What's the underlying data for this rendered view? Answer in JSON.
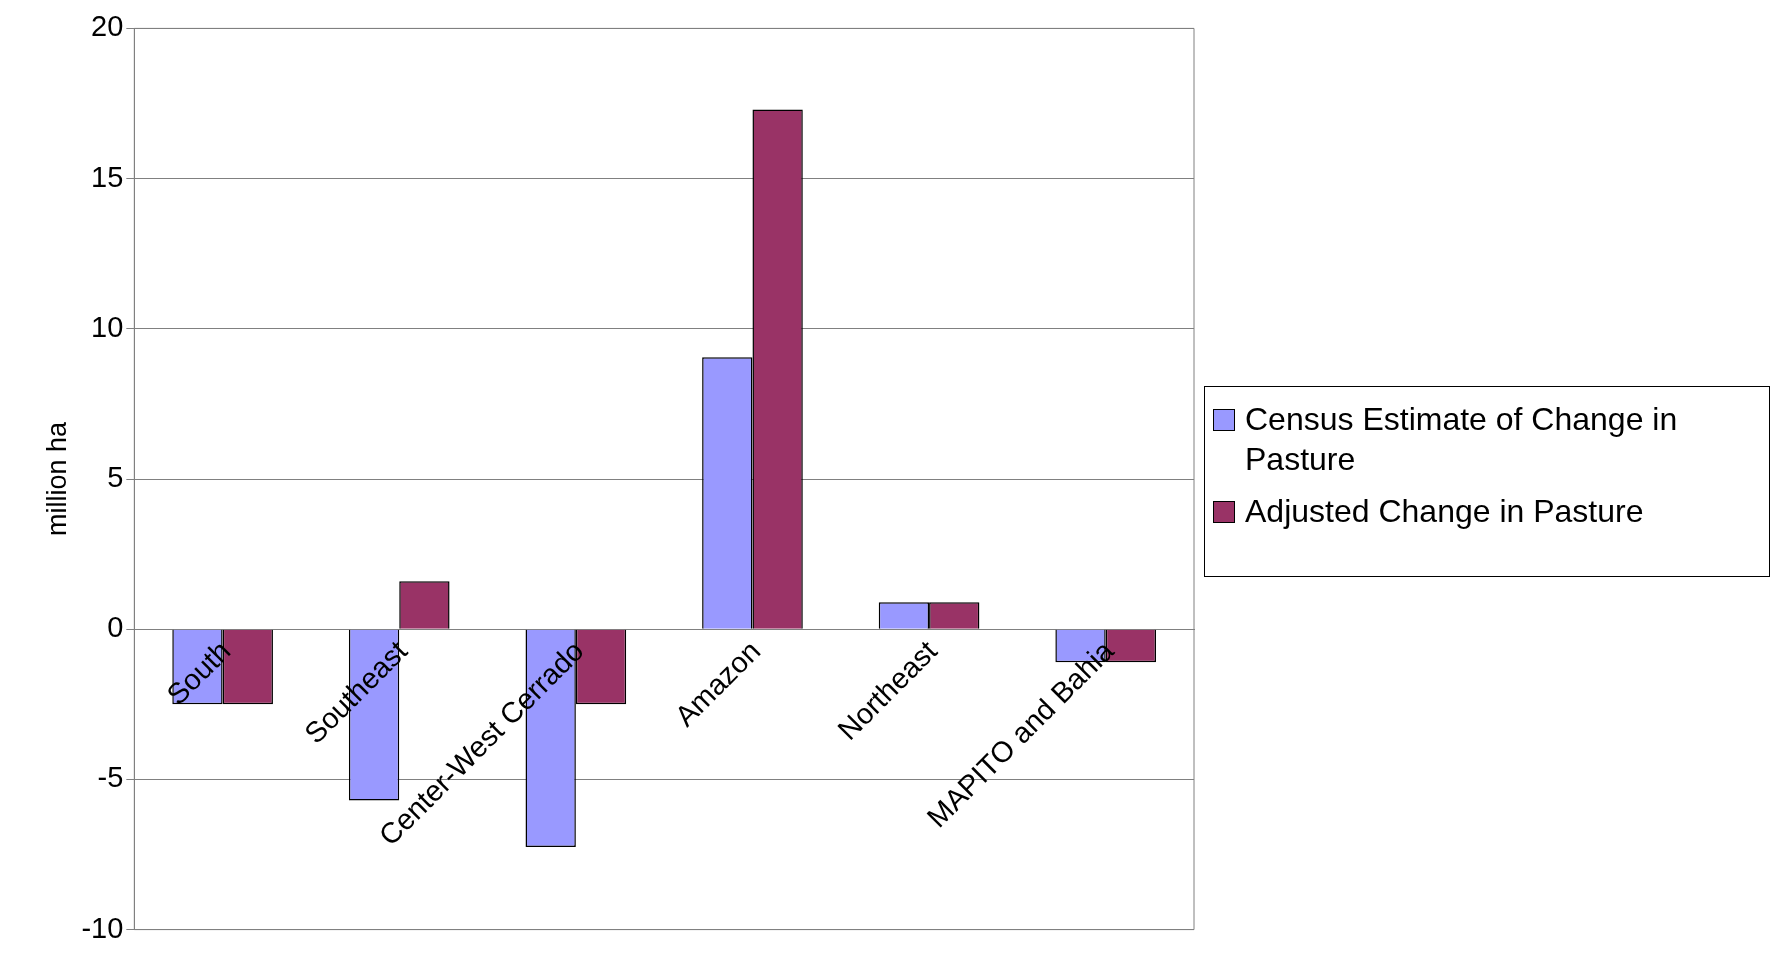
{
  "chart_data": {
    "type": "bar",
    "ylabel": "million ha",
    "categories": [
      "South",
      "Southeast",
      "Center-West Cerrado",
      "Amazon",
      "Northeast",
      "MAPITO and Bahia"
    ],
    "series": [
      {
        "name": "Census Estimate of Change in Pasture",
        "color": "#9999ff",
        "values": [
          -2.5,
          -5.7,
          -7.25,
          9.05,
          0.9,
          -1.1
        ]
      },
      {
        "name": "Adjusted Change in Pasture",
        "color": "#993366",
        "values": [
          -2.5,
          1.6,
          -2.5,
          17.3,
          0.9,
          -1.1
        ]
      }
    ],
    "ylim": [
      -10,
      20
    ],
    "yticks": [
      -10,
      -5,
      0,
      5,
      10,
      15,
      20
    ],
    "grid": "y",
    "legend": "right"
  }
}
